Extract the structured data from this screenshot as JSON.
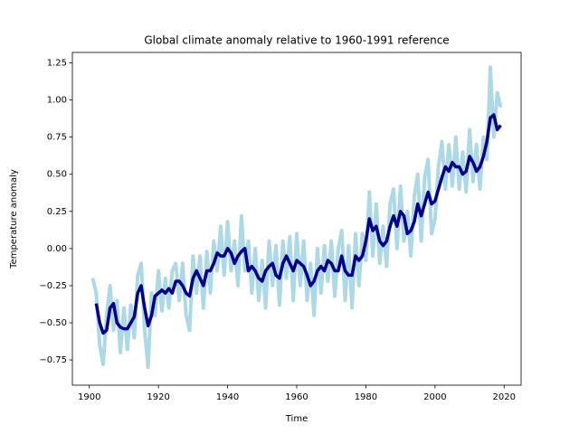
{
  "chart_data": {
    "type": "line",
    "title": "Global climate anomaly relative to 1960-1991 reference",
    "xlabel": "Time",
    "ylabel": "Temperature anomaly",
    "xlim": [
      1895.1,
      2024.9
    ],
    "ylim": [
      -0.92,
      1.32
    ],
    "xticks": [
      1900,
      1920,
      1940,
      1960,
      1980,
      2000,
      2020
    ],
    "yticks": [
      {
        "value": -0.75,
        "label": "−0.75"
      },
      {
        "value": -0.5,
        "label": "−0.50"
      },
      {
        "value": -0.25,
        "label": "−0.25"
      },
      {
        "value": 0,
        "label": "0.00"
      },
      0.25,
      {
        "value": 0.5,
        "label": "0.50"
      },
      0.75,
      {
        "value": 1,
        "label": "1.00"
      },
      1.25
    ],
    "x": [
      1901,
      1902,
      1903,
      1904,
      1905,
      1906,
      1907,
      1908,
      1909,
      1910,
      1911,
      1912,
      1913,
      1914,
      1915,
      1916,
      1917,
      1918,
      1919,
      1920,
      1921,
      1922,
      1923,
      1924,
      1925,
      1926,
      1927,
      1928,
      1929,
      1930,
      1931,
      1932,
      1933,
      1934,
      1935,
      1936,
      1937,
      1938,
      1939,
      1940,
      1941,
      1942,
      1943,
      1944,
      1945,
      1946,
      1947,
      1948,
      1949,
      1950,
      1951,
      1952,
      1953,
      1954,
      1955,
      1956,
      1957,
      1958,
      1959,
      1960,
      1961,
      1962,
      1963,
      1964,
      1965,
      1966,
      1967,
      1968,
      1969,
      1970,
      1971,
      1972,
      1973,
      1974,
      1975,
      1976,
      1977,
      1978,
      1979,
      1980,
      1981,
      1982,
      1983,
      1984,
      1985,
      1986,
      1987,
      1988,
      1989,
      1990,
      1991,
      1992,
      1993,
      1994,
      1995,
      1996,
      1997,
      1998,
      1999,
      2000,
      2001,
      2002,
      2003,
      2004,
      2005,
      2006,
      2007,
      2008,
      2009,
      2010,
      2011,
      2012,
      2013,
      2014,
      2015,
      2016,
      2017,
      2018,
      2019
    ],
    "series": [
      {
        "color": "#add8e6",
        "width": 4,
        "values": [
          -0.2,
          -0.3,
          -0.65,
          -0.78,
          -0.45,
          -0.25,
          -0.55,
          -0.35,
          -0.7,
          -0.4,
          -0.68,
          -0.38,
          -0.6,
          -0.18,
          -0.1,
          -0.55,
          -0.8,
          -0.3,
          -0.45,
          -0.15,
          -0.42,
          -0.2,
          -0.4,
          -0.15,
          -0.1,
          -0.35,
          -0.1,
          -0.45,
          -0.55,
          -0.05,
          -0.3,
          -0.05,
          -0.4,
          -0.02,
          -0.3,
          0.05,
          -0.15,
          0.15,
          -0.18,
          0.18,
          -0.15,
          0.05,
          -0.25,
          0.22,
          -0.15,
          0.05,
          -0.3,
          0.0,
          -0.35,
          -0.08,
          -0.4,
          0.05,
          -0.25,
          0.02,
          -0.38,
          0.05,
          -0.2,
          0.08,
          -0.35,
          0.1,
          -0.25,
          0.05,
          -0.35,
          -0.1,
          -0.45,
          0.0,
          -0.3,
          0.02,
          -0.22,
          0.05,
          -0.32,
          0.0,
          0.12,
          -0.35,
          0.02,
          -0.4,
          0.1,
          -0.25,
          0.1,
          -0.08,
          0.38,
          -0.05,
          0.3,
          -0.1,
          0.15,
          -0.12,
          0.3,
          0.4,
          0.0,
          0.42,
          0.05,
          0.25,
          -0.05,
          0.35,
          0.5,
          0.05,
          0.48,
          0.6,
          0.1,
          0.2,
          0.55,
          0.72,
          0.4,
          0.7,
          0.42,
          0.75,
          0.4,
          0.65,
          0.38,
          0.8,
          0.45,
          0.7,
          0.4,
          0.75,
          0.6,
          1.22,
          0.75,
          1.05,
          0.95
        ]
      },
      {
        "color": "#00008b",
        "width": 3.5,
        "values": [
          null,
          -0.37,
          -0.5,
          -0.57,
          -0.55,
          -0.4,
          -0.37,
          -0.5,
          -0.53,
          -0.54,
          -0.54,
          -0.5,
          -0.46,
          -0.3,
          -0.25,
          -0.4,
          -0.52,
          -0.45,
          -0.32,
          -0.3,
          -0.28,
          -0.3,
          -0.27,
          -0.3,
          -0.22,
          -0.22,
          -0.25,
          -0.3,
          -0.32,
          -0.2,
          -0.15,
          -0.2,
          -0.25,
          -0.15,
          -0.15,
          -0.1,
          -0.03,
          -0.05,
          -0.05,
          0.0,
          -0.03,
          -0.1,
          -0.05,
          -0.02,
          0.0,
          -0.15,
          -0.12,
          -0.15,
          -0.2,
          -0.22,
          -0.15,
          -0.12,
          -0.1,
          -0.18,
          -0.2,
          -0.1,
          -0.05,
          -0.1,
          -0.15,
          -0.08,
          -0.1,
          -0.12,
          -0.18,
          -0.25,
          -0.22,
          -0.15,
          -0.12,
          -0.15,
          -0.08,
          -0.1,
          -0.15,
          -0.15,
          -0.05,
          -0.15,
          -0.18,
          -0.18,
          -0.05,
          -0.08,
          -0.05,
          0.05,
          0.2,
          0.12,
          0.15,
          0.05,
          0.02,
          0.05,
          0.15,
          0.22,
          0.15,
          0.25,
          0.22,
          0.1,
          0.12,
          0.18,
          0.3,
          0.22,
          0.3,
          0.38,
          0.3,
          0.32,
          0.4,
          0.48,
          0.55,
          0.52,
          0.58,
          0.55,
          0.55,
          0.5,
          0.52,
          0.62,
          0.58,
          0.52,
          0.55,
          0.62,
          0.72,
          0.88,
          0.9,
          0.8,
          0.83
        ]
      }
    ]
  }
}
